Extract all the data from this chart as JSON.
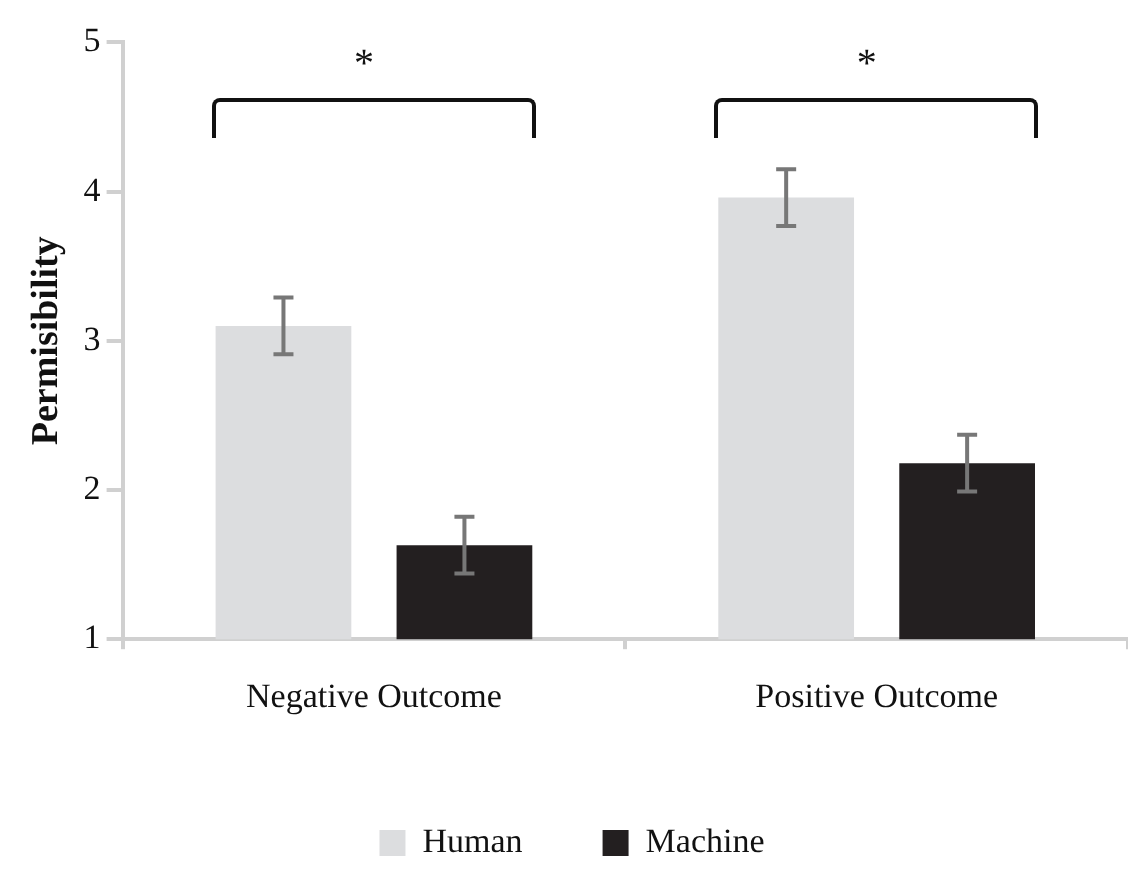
{
  "chart_data": {
    "type": "bar",
    "ylabel": "Permisibility",
    "categories": [
      "Negative Outcome",
      "Positive Outcome"
    ],
    "series": [
      {
        "name": "Human",
        "color": "#dcdddf",
        "values": [
          3.1,
          3.96
        ],
        "errors": [
          0.19,
          0.19
        ]
      },
      {
        "name": "Machine",
        "color": "#231f20",
        "values": [
          1.63,
          2.18
        ],
        "errors": [
          0.19,
          0.19
        ]
      }
    ],
    "ylim": [
      1,
      5
    ],
    "yticks": [
      1,
      2,
      3,
      4,
      5
    ],
    "grid": false,
    "legend": "bottom",
    "annotations": [
      "*",
      "*"
    ]
  }
}
